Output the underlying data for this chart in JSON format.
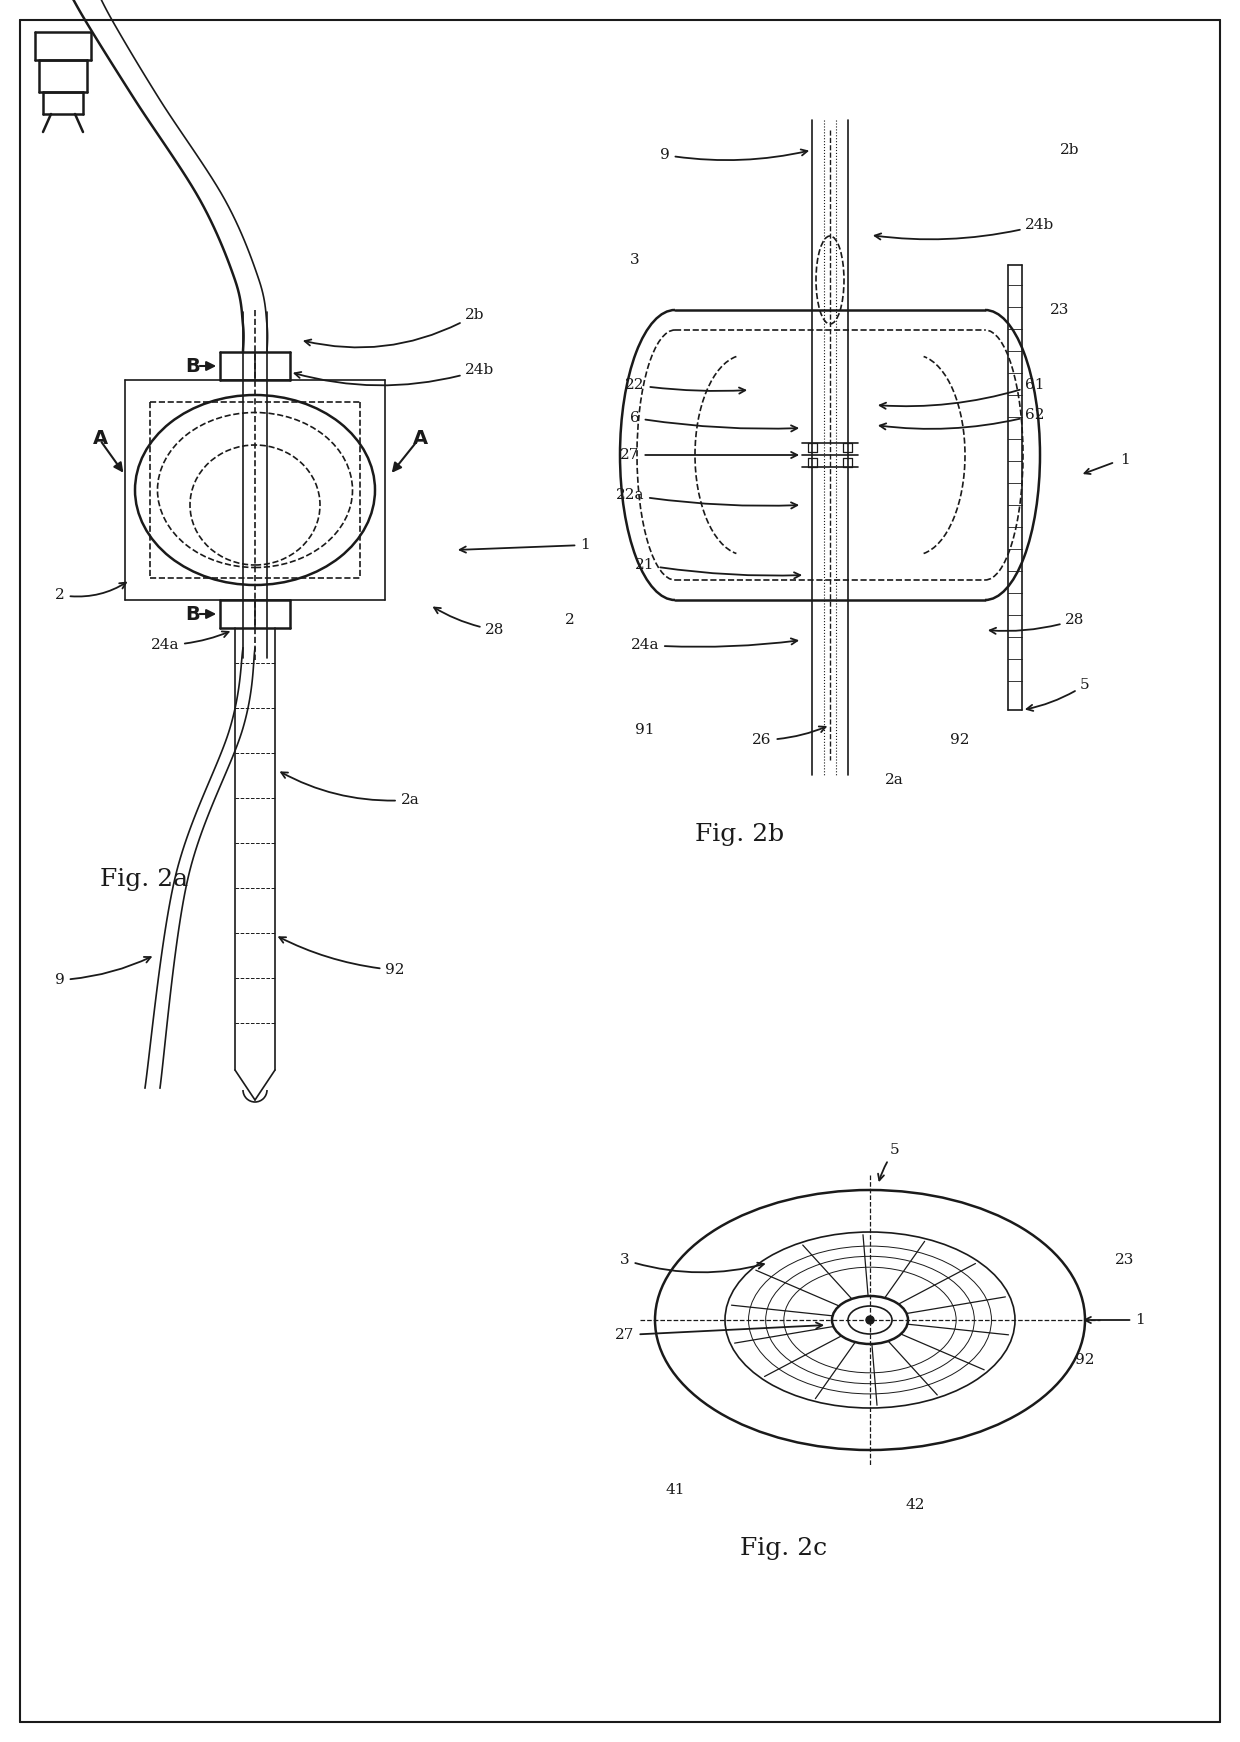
{
  "background_color": "#ffffff",
  "line_color": "#1a1a1a",
  "fig_width": 12.4,
  "fig_height": 17.42,
  "fig2a_label": "Fig. 2a",
  "fig2b_label": "Fig. 2b",
  "fig2c_label": "Fig. 2c"
}
